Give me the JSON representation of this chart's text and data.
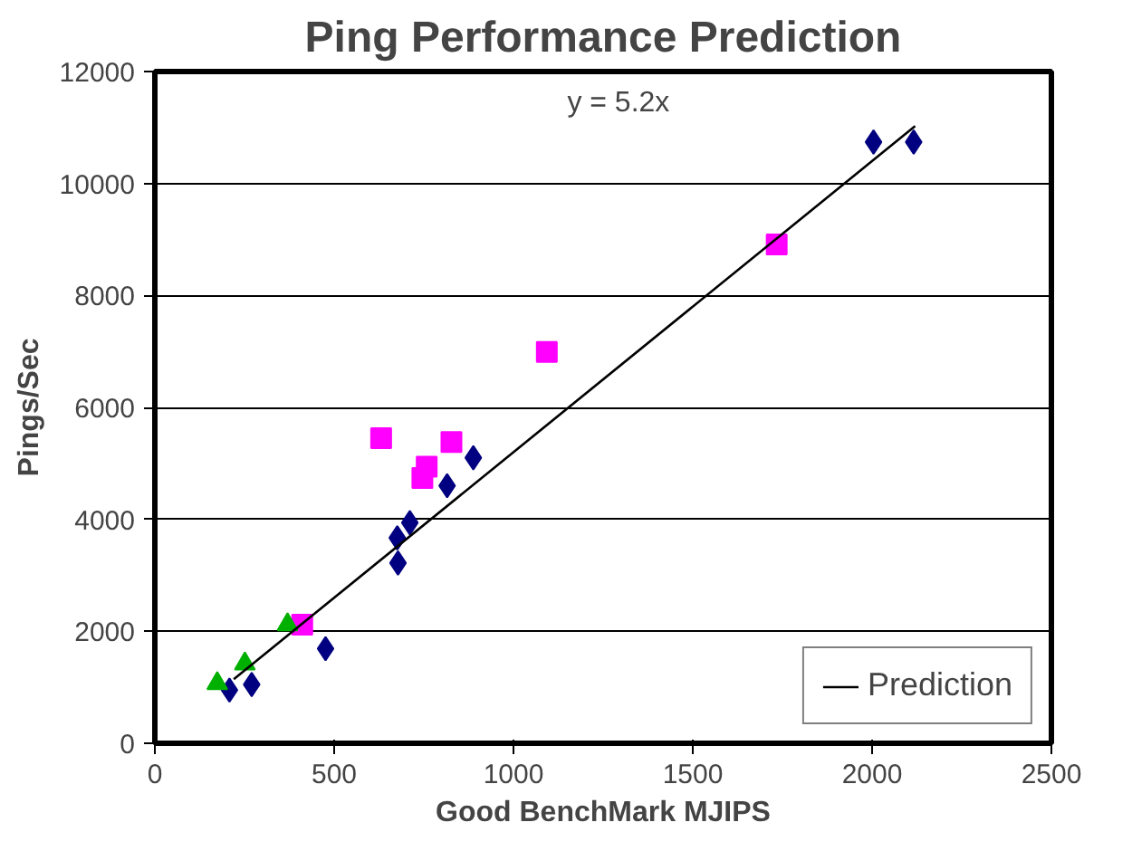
{
  "chart_data": {
    "type": "scatter",
    "title": "Ping Performance Prediction",
    "xlabel": "Good BenchMark MJIPS",
    "ylabel": "Pings/Sec",
    "annotations": [
      "y = 5.2x"
    ],
    "xlim": [
      0,
      2500
    ],
    "xticks": [
      0,
      500,
      1000,
      1500,
      2000,
      2500
    ],
    "ylim": [
      0,
      12000
    ],
    "yticks": [
      0,
      2000,
      4000,
      6000,
      8000,
      10000,
      12000
    ],
    "grid": "y",
    "legend": "bottom right",
    "series": [
      {
        "color": "#000080",
        "marker": "diamond",
        "x": [
          208,
          270,
          476,
          676,
          678,
          711,
          815,
          888,
          2004,
          2116
        ],
        "values": [
          950,
          1050,
          1690,
          3670,
          3220,
          3940,
          4600,
          5100,
          10740,
          10740
        ]
      },
      {
        "color": "#ff00ff",
        "marker": "square",
        "x": [
          411,
          631,
          746,
          758,
          827,
          1093,
          1734
        ],
        "values": [
          2120,
          5450,
          4740,
          4940,
          5380,
          6990,
          8910
        ]
      },
      {
        "color": "#00b000",
        "marker": "triangle",
        "x": [
          174,
          251,
          370
        ],
        "values": [
          1070,
          1420,
          2120
        ]
      },
      {
        "name": "Prediction",
        "type": "line",
        "color": "#000000",
        "marker": "none",
        "x": [
          220,
          2120
        ],
        "values": [
          1144,
          11024
        ]
      }
    ]
  }
}
